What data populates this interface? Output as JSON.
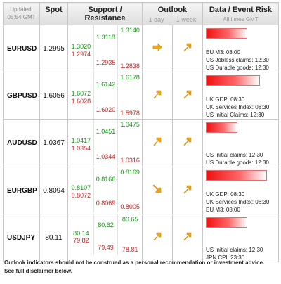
{
  "header": {
    "updated_label": "Updated:",
    "updated_time": "05:54 GMT",
    "spot": "Spot",
    "sr": "Support / Resistance",
    "outlook": "Outlook",
    "day": "1 day",
    "week": "1 week",
    "risk": "Data / Event Risk",
    "times": "All times GMT"
  },
  "rows": [
    {
      "pair": "EURUSD",
      "spot": "1.2995",
      "s1": "1.3020",
      "s1b": "1.2974",
      "s2": "1.3118",
      "s2b": "1.2935",
      "s3": "1.3140",
      "s3b": "1.2838",
      "day_icon": "arrow-right-icon",
      "week_icon": "arrow-up-right-icon",
      "risk_level": 0.6,
      "events": [
        "EU M3: 08:00",
        "US Jobless claims: 12:30",
        "US Durable goods: 12:30"
      ]
    },
    {
      "pair": "GBPUSD",
      "spot": "1.6056",
      "s1": "1.6072",
      "s1b": "1.6028",
      "s2": "1.6142",
      "s2b": "1.6020",
      "s3": "1.6178",
      "s3b": "1.5978",
      "day_icon": "arrow-up-right-icon",
      "week_icon": "arrow-up-right-icon",
      "risk_level": 0.78,
      "events": [
        "UK GDP: 08:30",
        "UK Services Index: 08:30",
        "US Initial Claims: 12:30"
      ]
    },
    {
      "pair": "AUDUSD",
      "spot": "1.0367",
      "s1": "1.0417",
      "s1b": "1.0354",
      "s2": "1.0451",
      "s2b": "1.0344",
      "s3": "1.0475",
      "s3b": "1.0316",
      "day_icon": "arrow-up-right-icon",
      "week_icon": "arrow-up-right-icon",
      "risk_level": 0.45,
      "events": [
        "US Initial claims: 12:30",
        "US Durable goods: 12:30"
      ]
    },
    {
      "pair": "EURGBP",
      "spot": "0.8094",
      "s1": "0.8107",
      "s1b": "0.8072",
      "s2": "0.8166",
      "s2b": "0.8069",
      "s3": "0.8169",
      "s3b": "0.8005",
      "day_icon": "arrow-down-right-icon",
      "week_icon": "arrow-up-right-icon",
      "risk_level": 0.88,
      "events": [
        "UK GDP: 08:30",
        "UK Services Index: 08:30",
        "EU M3: 08:00"
      ]
    },
    {
      "pair": "USDJPY",
      "spot": "80.11",
      "s1": "80.14",
      "s1b": "79.82",
      "s2": "80.62",
      "s2b": "79.49",
      "s3": "80.65",
      "s3b": "78.81",
      "day_icon": "arrow-up-right-icon",
      "week_icon": "arrow-up-right-icon",
      "risk_level": 0.6,
      "events": [
        "US Initial claims: 12:30",
        "JPN CPI: 23:30"
      ]
    }
  ],
  "footer": {
    "line1": "Outlook indicators should not be construed as a personal recommendation or investment advice.",
    "line2": "See full disclaimer below."
  },
  "colors": {
    "support": "#119911",
    "resistance": "#cc2222",
    "arrow": "#f0a81a",
    "risk_bar": "#ee1111"
  }
}
